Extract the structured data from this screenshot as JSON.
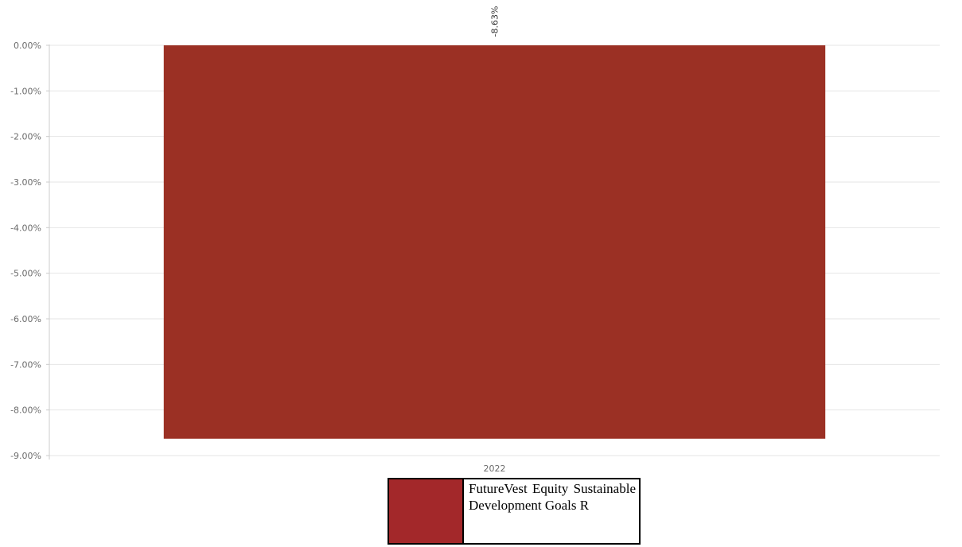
{
  "chart_data": {
    "type": "bar",
    "categories": [
      "2022"
    ],
    "series": [
      {
        "name": "FutureVest Equity Sustainable Develop­ment Goals R",
        "values": [
          -8.63
        ],
        "color": "#9b3024"
      }
    ],
    "data_labels": [
      "-8.63%"
    ],
    "yticks": [
      "0.00%",
      "-1.00%",
      "-2.00%",
      "-3.00%",
      "-4.00%",
      "-5.00%",
      "-6.00%",
      "-7.00%",
      "-8.00%",
      "-9.00%"
    ],
    "ylim": [
      -9,
      0
    ],
    "grid": true,
    "legend_position": "bottom-center",
    "legend_swatch_color": "#a3282a"
  }
}
